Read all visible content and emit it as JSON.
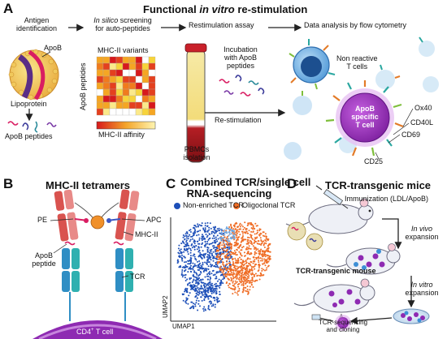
{
  "panel_a": {
    "letter": "A",
    "title": "Functional",
    "title_italic": "in vitro",
    "title_end": "re-stimulation",
    "step1": [
      "Antigen",
      "identification"
    ],
    "step2_italic": "In silico",
    "step2_rest": "screening",
    "step2_line2": "for auto-peptides",
    "step3": "Restimulation assay",
    "step4": "Data analysis by flow cytometry",
    "apob": "ApoB",
    "lipoprotein": "Lipoprotein",
    "apob_peptides": "ApoB peptides",
    "mhc_variants": "MHC-II variants",
    "apob_peptides_axis": "ApoB peptides",
    "mhc_affinity": "MHC-II affinity",
    "incubation": [
      "Incubation",
      "with ApoB",
      "peptides"
    ],
    "restimulation": "Re-stimulation",
    "pbmcs": [
      "PBMCs",
      "isolation"
    ],
    "non_reactive": [
      "Non reactive",
      "T cells"
    ],
    "apob_specific": [
      "ApoB",
      "specific",
      "T cell"
    ],
    "markers": [
      "Ox40",
      "CD40L",
      "CD69",
      "CD25"
    ]
  },
  "panel_b": {
    "letter": "B",
    "title": "MHC-II tetramers",
    "pe": "PE",
    "apc": "APC",
    "mhc": "MHC-II",
    "apob_peptide": [
      "ApoB",
      "peptide"
    ],
    "tcr": "TCR",
    "cd4_prefix": "CD4",
    "cd4_sup": "+",
    "cd4_suffix": " T cell"
  },
  "panel_c": {
    "letter": "C",
    "title": [
      "Combined TCR/single cell",
      "RNA-sequencing"
    ],
    "legend": [
      "Non-enriched TCR",
      "Oligoclonal TCR"
    ],
    "xlabel": "UMAP1",
    "ylabel": "UMAP2"
  },
  "panel_d": {
    "letter": "D",
    "title": "TCR-transgenic mice",
    "immunization": "Immunization (LDL/ApoB)",
    "in_vivo": [
      "In vivo",
      "expansion"
    ],
    "tg_mouse": "TCR-transgenic mouse",
    "in_vitro": [
      "In vitro",
      "expansion"
    ],
    "sequencing": [
      "TCR-sequencing",
      "and cloning"
    ]
  },
  "colors": {
    "red": "#d7191c",
    "orange": "#f07b1d",
    "yellow": "#f7d43a",
    "blue_cluster": "#1d4fb8",
    "orange_cluster": "#ef6c24",
    "purple": "#8e2ab2",
    "cell_blue": "#3d8fd6"
  }
}
